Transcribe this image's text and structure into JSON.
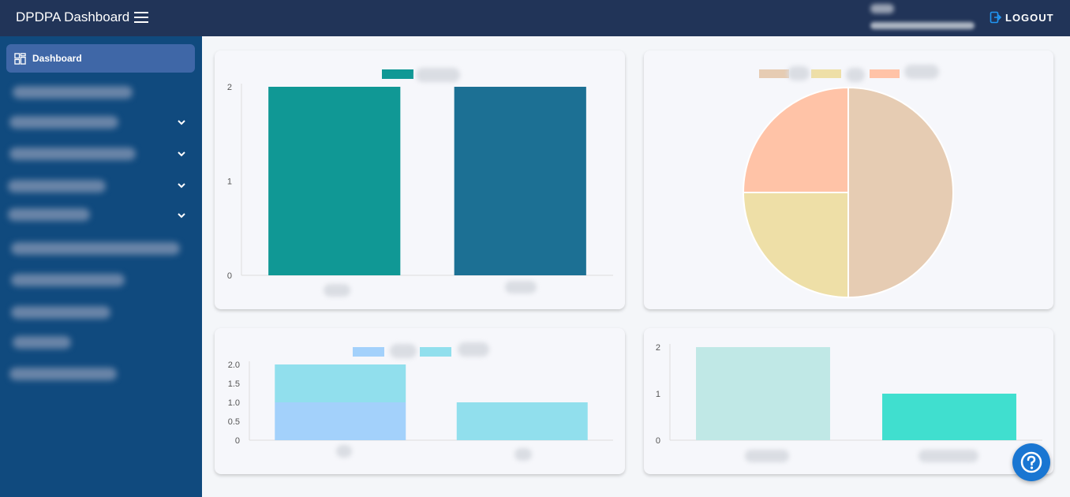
{
  "header": {
    "title": "DPDPA Dashboard",
    "logout_label": "LOGOUT"
  },
  "sidebar": {
    "active_item": "Dashboard"
  },
  "chart_data": [
    {
      "type": "bar",
      "categories": [
        "",
        ""
      ],
      "series": [
        {
          "values": [
            2,
            2
          ],
          "colors": [
            "#109895",
            "#1c7094"
          ]
        }
      ],
      "yticks": [
        "0",
        "1",
        "2"
      ],
      "ylim": [
        0,
        2
      ],
      "legend": "top"
    },
    {
      "type": "pie",
      "values": [
        2,
        1,
        1
      ],
      "colors": [
        "#e6ccb3",
        "#eedfa7",
        "#ffc3a7"
      ],
      "legend": "top"
    },
    {
      "type": "bar",
      "stacked": true,
      "categories": [
        "",
        ""
      ],
      "series": [
        {
          "values": [
            1,
            0
          ],
          "color": "#a3d1fb"
        },
        {
          "values": [
            1,
            1
          ],
          "color": "#91dfed"
        }
      ],
      "yticks": [
        "0",
        "0.5",
        "1.0",
        "1.5",
        "2.0"
      ],
      "ylim": [
        0,
        2
      ],
      "legend": "top"
    },
    {
      "type": "bar",
      "categories": [
        "",
        ""
      ],
      "series": [
        {
          "values": [
            2,
            1
          ],
          "colors": [
            "#c0e8e6",
            "#40dfcf"
          ]
        }
      ],
      "yticks": [
        "0",
        "1",
        "2"
      ],
      "ylim": [
        0,
        2
      ]
    }
  ]
}
